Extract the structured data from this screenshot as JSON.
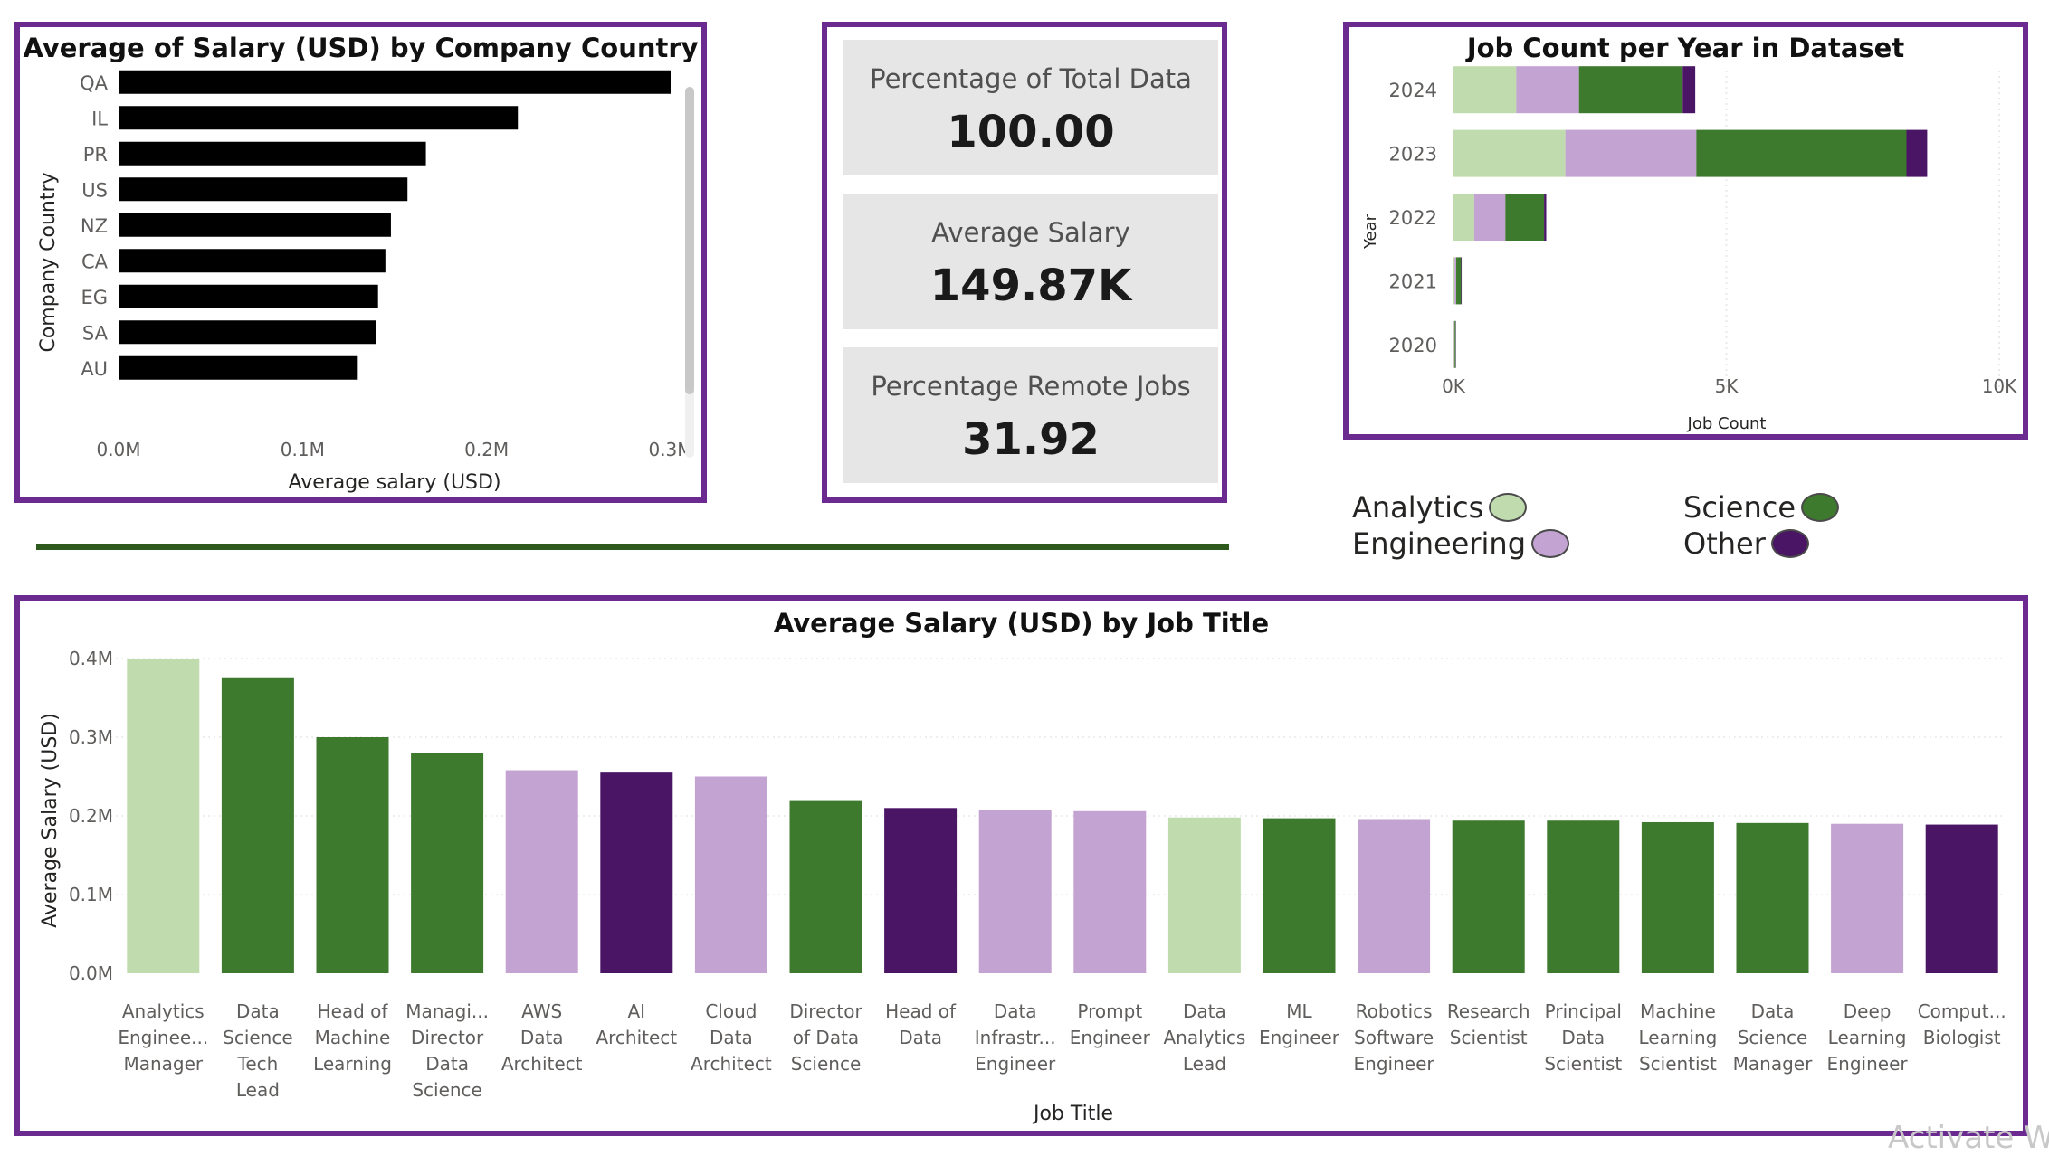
{
  "colors": {
    "frame": "#6a2a8f",
    "analytics": "#c0dcaf",
    "engineering": "#c3a3d2",
    "science": "#3e7a2e",
    "other": "#4b1565",
    "country_bar": "#000000"
  },
  "country_chart": {
    "title": "Average of Salary (USD) by Company Country",
    "chart_data": {
      "type": "bar",
      "orientation": "horizontal",
      "title": "Average of Salary (USD) by Company Country",
      "xlabel": "Average salary (USD)",
      "ylabel": "Company Country",
      "categories": [
        "QA",
        "IL",
        "PR",
        "US",
        "NZ",
        "CA",
        "EG",
        "SA",
        "AU"
      ],
      "values": [
        0.3,
        0.217,
        0.167,
        0.157,
        0.148,
        0.145,
        0.141,
        0.14,
        0.13
      ],
      "x_unit": "M",
      "xlim": [
        0,
        0.3
      ],
      "xticks": [
        "0.0M",
        "0.1M",
        "0.2M",
        "0.3M"
      ],
      "grid": false,
      "legend": false
    }
  },
  "kpis": [
    {
      "label": "Percentage of Total Data",
      "value": "100.00"
    },
    {
      "label": "Average Salary",
      "value": "149.87K"
    },
    {
      "label": "Percentage Remote Jobs",
      "value": "31.92"
    }
  ],
  "year_chart": {
    "title": "Job Count per Year in Dataset",
    "chart_data": {
      "type": "bar",
      "orientation": "horizontal",
      "stacked": true,
      "title": "Job Count per Year in Dataset",
      "xlabel": "Job Count",
      "ylabel": "Year",
      "categories": [
        "2024",
        "2023",
        "2022",
        "2021",
        "2020"
      ],
      "series": [
        {
          "name": "Analytics",
          "values": [
            1150,
            2050,
            380,
            20,
            10
          ]
        },
        {
          "name": "Engineering",
          "values": [
            1150,
            2400,
            570,
            30,
            10
          ]
        },
        {
          "name": "Science",
          "values": [
            1900,
            3850,
            710,
            90,
            20
          ]
        },
        {
          "name": "Other",
          "values": [
            230,
            380,
            40,
            10,
            5
          ]
        }
      ],
      "xlim": [
        0,
        10000
      ],
      "xticks": [
        "0K",
        "5K",
        "10K"
      ],
      "grid": true,
      "legend": "bottom"
    }
  },
  "legend": [
    {
      "name": "Analytics",
      "color": "#c0dcaf"
    },
    {
      "name": "Engineering",
      "color": "#c3a3d2"
    },
    {
      "name": "Science",
      "color": "#3e7a2e"
    },
    {
      "name": "Other",
      "color": "#4b1565"
    }
  ],
  "job_chart": {
    "title": "Average Salary (USD) by Job Title",
    "chart_data": {
      "type": "bar",
      "title": "Average Salary (USD) by Job Title",
      "xlabel": "Job Title",
      "ylabel": "Average Salary (USD)",
      "ylim": [
        0,
        0.4
      ],
      "yticks": [
        "0.0M",
        "0.1M",
        "0.2M",
        "0.3M",
        "0.4M"
      ],
      "y_unit": "M",
      "grid": true,
      "bars": [
        {
          "label": [
            "Analytics",
            "Enginee...",
            "Manager"
          ],
          "value": 0.4,
          "group": "analytics"
        },
        {
          "label": [
            "Data",
            "Science",
            "Tech",
            "Lead"
          ],
          "value": 0.375,
          "group": "science"
        },
        {
          "label": [
            "Head of",
            "Machine",
            "Learning"
          ],
          "value": 0.3,
          "group": "science"
        },
        {
          "label": [
            "Managi...",
            "Director",
            "Data",
            "Science"
          ],
          "value": 0.28,
          "group": "science"
        },
        {
          "label": [
            "AWS",
            "Data",
            "Architect"
          ],
          "value": 0.258,
          "group": "engineering"
        },
        {
          "label": [
            "AI",
            "Architect"
          ],
          "value": 0.255,
          "group": "other"
        },
        {
          "label": [
            "Cloud",
            "Data",
            "Architect"
          ],
          "value": 0.25,
          "group": "engineering"
        },
        {
          "label": [
            "Director",
            "of Data",
            "Science"
          ],
          "value": 0.22,
          "group": "science"
        },
        {
          "label": [
            "Head of",
            "Data"
          ],
          "value": 0.21,
          "group": "other"
        },
        {
          "label": [
            "Data",
            "Infrastr...",
            "Engineer"
          ],
          "value": 0.208,
          "group": "engineering"
        },
        {
          "label": [
            "Prompt",
            "Engineer"
          ],
          "value": 0.206,
          "group": "engineering"
        },
        {
          "label": [
            "Data",
            "Analytics",
            "Lead"
          ],
          "value": 0.198,
          "group": "analytics"
        },
        {
          "label": [
            "ML",
            "Engineer"
          ],
          "value": 0.197,
          "group": "science"
        },
        {
          "label": [
            "Robotics",
            "Software",
            "Engineer"
          ],
          "value": 0.196,
          "group": "engineering"
        },
        {
          "label": [
            "Research",
            "Scientist"
          ],
          "value": 0.194,
          "group": "science"
        },
        {
          "label": [
            "Principal",
            "Data",
            "Scientist"
          ],
          "value": 0.194,
          "group": "science"
        },
        {
          "label": [
            "Machine",
            "Learning",
            "Scientist"
          ],
          "value": 0.192,
          "group": "science"
        },
        {
          "label": [
            "Data",
            "Science",
            "Manager"
          ],
          "value": 0.191,
          "group": "science"
        },
        {
          "label": [
            "Deep",
            "Learning",
            "Engineer"
          ],
          "value": 0.19,
          "group": "engineering"
        },
        {
          "label": [
            "Comput...",
            "Biologist"
          ],
          "value": 0.189,
          "group": "other"
        }
      ]
    }
  },
  "watermark": "Activate W"
}
